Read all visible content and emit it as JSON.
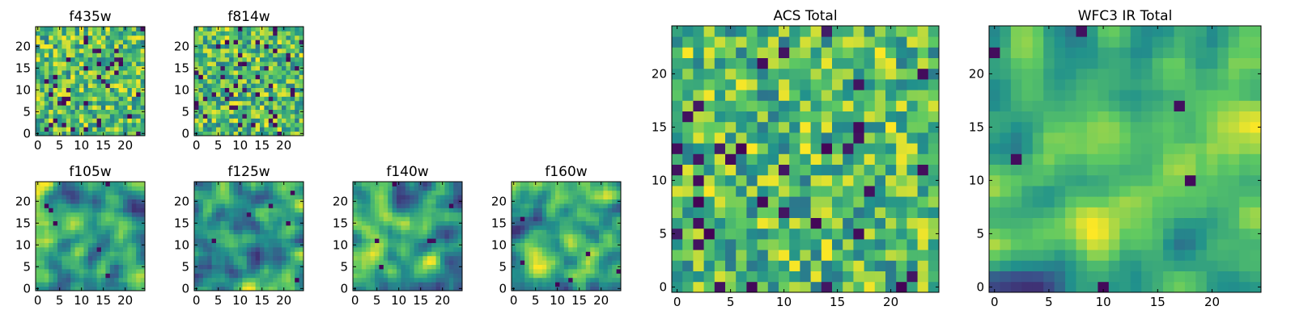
{
  "figure": {
    "colormap": "viridis",
    "colormap_stops": [
      "#440154",
      "#3b528b",
      "#21918c",
      "#5ec962",
      "#fde725"
    ]
  },
  "chart_data": [
    {
      "type": "heatmap",
      "title": "f435w",
      "grid_size": 25,
      "xlim": [
        0,
        24
      ],
      "ylim": [
        0,
        24
      ],
      "xticks": [
        "0",
        "5",
        "10",
        "15",
        "20"
      ],
      "yticks": [
        "0",
        "5",
        "10",
        "15",
        "20"
      ],
      "pattern": "noisy",
      "seed": 11
    },
    {
      "type": "heatmap",
      "title": "f814w",
      "grid_size": 25,
      "xlim": [
        0,
        24
      ],
      "ylim": [
        0,
        24
      ],
      "xticks": [
        "0",
        "5",
        "10",
        "15",
        "20"
      ],
      "yticks": [
        "0",
        "5",
        "10",
        "15",
        "20"
      ],
      "pattern": "noisy",
      "seed": 23
    },
    {
      "type": "heatmap",
      "title": "f105w",
      "grid_size": 25,
      "xlim": [
        0,
        24
      ],
      "ylim": [
        0,
        24
      ],
      "xticks": [
        "0",
        "5",
        "10",
        "15",
        "20"
      ],
      "yticks": [
        "0",
        "5",
        "10",
        "15",
        "20"
      ],
      "pattern": "smooth",
      "seed": 37
    },
    {
      "type": "heatmap",
      "title": "f125w",
      "grid_size": 25,
      "xlim": [
        0,
        24
      ],
      "ylim": [
        0,
        24
      ],
      "xticks": [
        "0",
        "5",
        "10",
        "15",
        "20"
      ],
      "yticks": [
        "0",
        "5",
        "10",
        "15",
        "20"
      ],
      "pattern": "smooth",
      "seed": 41
    },
    {
      "type": "heatmap",
      "title": "f140w",
      "grid_size": 25,
      "xlim": [
        0,
        24
      ],
      "ylim": [
        0,
        24
      ],
      "xticks": [
        "0",
        "5",
        "10",
        "15",
        "20"
      ],
      "yticks": [
        "0",
        "5",
        "10",
        "15",
        "20"
      ],
      "pattern": "smooth",
      "seed": 53
    },
    {
      "type": "heatmap",
      "title": "f160w",
      "grid_size": 25,
      "xlim": [
        0,
        24
      ],
      "ylim": [
        0,
        24
      ],
      "xticks": [
        "0",
        "5",
        "10",
        "15",
        "20"
      ],
      "yticks": [
        "0",
        "5",
        "10",
        "15",
        "20"
      ],
      "pattern": "smooth",
      "seed": 67
    },
    {
      "type": "heatmap",
      "title": "ACS Total",
      "grid_size": 25,
      "xlim": [
        0,
        24
      ],
      "ylim": [
        0,
        24
      ],
      "xticks": [
        "0",
        "5",
        "10",
        "15",
        "20"
      ],
      "yticks": [
        "0",
        "5",
        "10",
        "15",
        "20"
      ],
      "pattern": "noisy",
      "seed": 79
    },
    {
      "type": "heatmap",
      "title": "WFC3 IR Total",
      "grid_size": 25,
      "xlim": [
        0,
        24
      ],
      "ylim": [
        0,
        24
      ],
      "xticks": [
        "0",
        "5",
        "10",
        "15",
        "20"
      ],
      "yticks": [
        "0",
        "5",
        "10",
        "15",
        "20"
      ],
      "pattern": "smooth",
      "seed": 97
    }
  ]
}
